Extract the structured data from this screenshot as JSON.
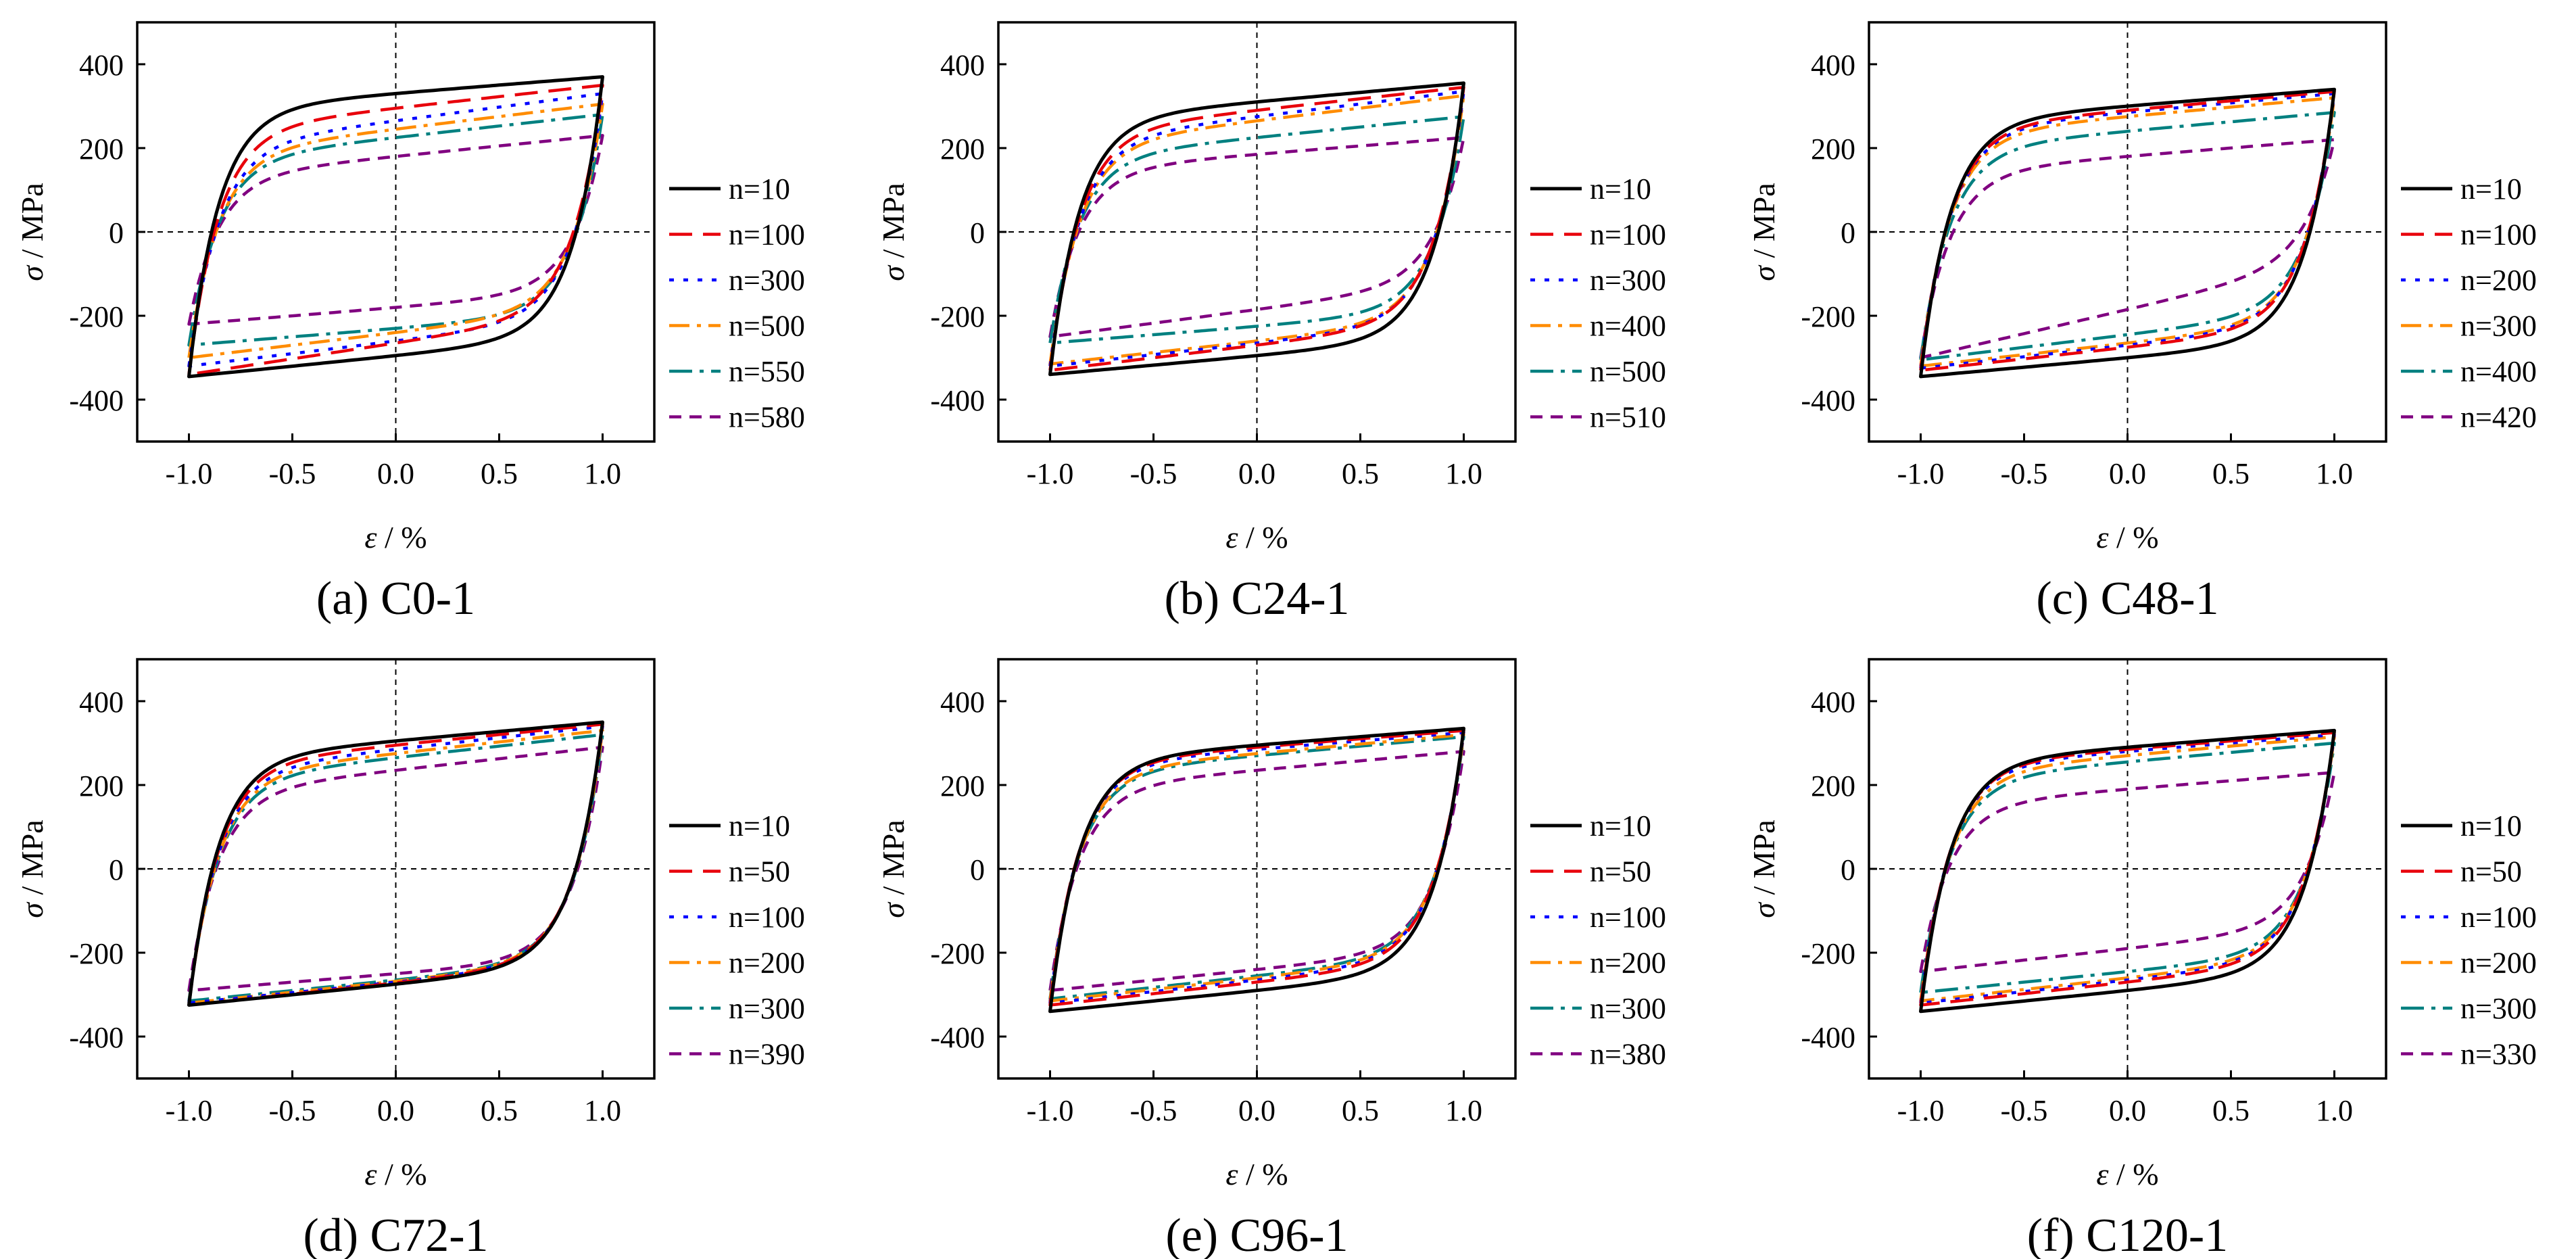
{
  "figure": {
    "axis_labels": {
      "y_symbol": "σ",
      "y_unit": " / MPa",
      "x_symbol": "ε",
      "x_unit": " / %"
    }
  },
  "style": {
    "colors": [
      "#000000",
      "#e8000b",
      "#0000ff",
      "#ff8c00",
      "#008080",
      "#800080"
    ],
    "dashes": [
      "",
      "34 16",
      "7 14",
      "30 11 6 11",
      "34 11 6 11",
      "18 12"
    ]
  },
  "chart_data": [
    {
      "type": "line",
      "title": "(a) C0-1",
      "xlabel": "ε / %",
      "ylabel": "σ / MPa",
      "xlim": [
        -1.25,
        1.25
      ],
      "ylim": [
        -500,
        500
      ],
      "xticks": [
        -1.0,
        -0.5,
        0.0,
        0.5,
        1.0
      ],
      "yticks": [
        -400,
        -200,
        0,
        200,
        400
      ],
      "xtick_labels": [
        "-1.0",
        "-0.5",
        "0.0",
        "0.5",
        "1.0"
      ],
      "ytick_labels": [
        "-400",
        "-200",
        "0",
        "200",
        "400"
      ],
      "series": [
        {
          "name": "n=10",
          "peak_tension": 370,
          "peak_compression": -345,
          "stress_at_zero_strain_upper": 330,
          "stress_at_zero_strain_lower": -295
        },
        {
          "name": "n=100",
          "peak_tension": 350,
          "peak_compression": -340,
          "stress_at_zero_strain_upper": 295,
          "stress_at_zero_strain_lower": -265
        },
        {
          "name": "n=300",
          "peak_tension": 330,
          "peak_compression": -320,
          "stress_at_zero_strain_upper": 265,
          "stress_at_zero_strain_lower": -260
        },
        {
          "name": "n=500",
          "peak_tension": 305,
          "peak_compression": -300,
          "stress_at_zero_strain_upper": 245,
          "stress_at_zero_strain_lower": -240
        },
        {
          "name": "n=550",
          "peak_tension": 280,
          "peak_compression": -270,
          "stress_at_zero_strain_upper": 225,
          "stress_at_zero_strain_lower": -230
        },
        {
          "name": "n=580",
          "peak_tension": 230,
          "peak_compression": -220,
          "stress_at_zero_strain_upper": 180,
          "stress_at_zero_strain_lower": -180
        }
      ]
    },
    {
      "type": "line",
      "title": "(b) C24-1",
      "xlabel": "ε / %",
      "ylabel": "σ / MPa",
      "xlim": [
        -1.25,
        1.25
      ],
      "ylim": [
        -500,
        500
      ],
      "xticks": [
        -1.0,
        -0.5,
        0.0,
        0.5,
        1.0
      ],
      "yticks": [
        -400,
        -200,
        0,
        200,
        400
      ],
      "xtick_labels": [
        "-1.0",
        "-0.5",
        "0.0",
        "0.5",
        "1.0"
      ],
      "ytick_labels": [
        "-400",
        "-200",
        "0",
        "200",
        "400"
      ],
      "series": [
        {
          "name": "n=10",
          "peak_tension": 355,
          "peak_compression": -340,
          "stress_at_zero_strain_upper": 310,
          "stress_at_zero_strain_lower": -295
        },
        {
          "name": "n=100",
          "peak_tension": 345,
          "peak_compression": -330,
          "stress_at_zero_strain_upper": 290,
          "stress_at_zero_strain_lower": -270
        },
        {
          "name": "n=300",
          "peak_tension": 335,
          "peak_compression": -320,
          "stress_at_zero_strain_upper": 275,
          "stress_at_zero_strain_lower": -265
        },
        {
          "name": "n=400",
          "peak_tension": 325,
          "peak_compression": -315,
          "stress_at_zero_strain_upper": 265,
          "stress_at_zero_strain_lower": -260
        },
        {
          "name": "n=500",
          "peak_tension": 275,
          "peak_compression": -265,
          "stress_at_zero_strain_upper": 225,
          "stress_at_zero_strain_lower": -225
        },
        {
          "name": "n=510",
          "peak_tension": 225,
          "peak_compression": -250,
          "stress_at_zero_strain_upper": 185,
          "stress_at_zero_strain_lower": -185
        }
      ]
    },
    {
      "type": "line",
      "title": "(c) C48-1",
      "xlabel": "ε / %",
      "ylabel": "σ / MPa",
      "xlim": [
        -1.25,
        1.25
      ],
      "ylim": [
        -500,
        500
      ],
      "xticks": [
        -1.0,
        -0.5,
        0.0,
        0.5,
        1.0
      ],
      "yticks": [
        -400,
        -200,
        0,
        200,
        400
      ],
      "xtick_labels": [
        "-1.0",
        "-0.5",
        "0.0",
        "0.5",
        "1.0"
      ],
      "ytick_labels": [
        "-400",
        "-200",
        "0",
        "200",
        "400"
      ],
      "series": [
        {
          "name": "n=10",
          "peak_tension": 340,
          "peak_compression": -345,
          "stress_at_zero_strain_upper": 300,
          "stress_at_zero_strain_lower": -300
        },
        {
          "name": "n=100",
          "peak_tension": 335,
          "peak_compression": -330,
          "stress_at_zero_strain_upper": 290,
          "stress_at_zero_strain_lower": -275
        },
        {
          "name": "n=200",
          "peak_tension": 330,
          "peak_compression": -325,
          "stress_at_zero_strain_upper": 285,
          "stress_at_zero_strain_lower": -270
        },
        {
          "name": "n=300",
          "peak_tension": 320,
          "peak_compression": -320,
          "stress_at_zero_strain_upper": 275,
          "stress_at_zero_strain_lower": -265
        },
        {
          "name": "n=400",
          "peak_tension": 285,
          "peak_compression": -305,
          "stress_at_zero_strain_upper": 240,
          "stress_at_zero_strain_lower": -245
        },
        {
          "name": "n=420",
          "peak_tension": 220,
          "peak_compression": -300,
          "stress_at_zero_strain_upper": 180,
          "stress_at_zero_strain_lower": -185
        }
      ]
    },
    {
      "type": "line",
      "title": "(d) C72-1",
      "xlabel": "ε / %",
      "ylabel": "σ / MPa",
      "xlim": [
        -1.25,
        1.25
      ],
      "ylim": [
        -500,
        500
      ],
      "xticks": [
        -1.0,
        -0.5,
        0.0,
        0.5,
        1.0
      ],
      "yticks": [
        -400,
        -200,
        0,
        200,
        400
      ],
      "xtick_labels": [
        "-1.0",
        "-0.5",
        "0.0",
        "0.5",
        "1.0"
      ],
      "ytick_labels": [
        "-400",
        "-200",
        "0",
        "200",
        "400"
      ],
      "series": [
        {
          "name": "n=10",
          "peak_tension": 350,
          "peak_compression": -325,
          "stress_at_zero_strain_upper": 305,
          "stress_at_zero_strain_lower": -275
        },
        {
          "name": "n=50",
          "peak_tension": 345,
          "peak_compression": -325,
          "stress_at_zero_strain_upper": 295,
          "stress_at_zero_strain_lower": -272
        },
        {
          "name": "n=100",
          "peak_tension": 340,
          "peak_compression": -320,
          "stress_at_zero_strain_upper": 285,
          "stress_at_zero_strain_lower": -270
        },
        {
          "name": "n=200",
          "peak_tension": 330,
          "peak_compression": -320,
          "stress_at_zero_strain_upper": 275,
          "stress_at_zero_strain_lower": -268
        },
        {
          "name": "n=300",
          "peak_tension": 320,
          "peak_compression": -315,
          "stress_at_zero_strain_upper": 265,
          "stress_at_zero_strain_lower": -265
        },
        {
          "name": "n=390",
          "peak_tension": 290,
          "peak_compression": -290,
          "stress_at_zero_strain_upper": 235,
          "stress_at_zero_strain_lower": -250
        }
      ]
    },
    {
      "type": "line",
      "title": "(e) C96-1",
      "xlabel": "ε / %",
      "ylabel": "σ / MPa",
      "xlim": [
        -1.25,
        1.25
      ],
      "ylim": [
        -500,
        500
      ],
      "xticks": [
        -1.0,
        -0.5,
        0.0,
        0.5,
        1.0
      ],
      "yticks": [
        -400,
        -200,
        0,
        200,
        400
      ],
      "xtick_labels": [
        "-1.0",
        "-0.5",
        "0.0",
        "0.5",
        "1.0"
      ],
      "ytick_labels": [
        "-400",
        "-200",
        "0",
        "200",
        "400"
      ],
      "series": [
        {
          "name": "n=10",
          "peak_tension": 335,
          "peak_compression": -340,
          "stress_at_zero_strain_upper": 295,
          "stress_at_zero_strain_lower": -290
        },
        {
          "name": "n=50",
          "peak_tension": 330,
          "peak_compression": -325,
          "stress_at_zero_strain_upper": 290,
          "stress_at_zero_strain_lower": -270
        },
        {
          "name": "n=100",
          "peak_tension": 325,
          "peak_compression": -320,
          "stress_at_zero_strain_upper": 285,
          "stress_at_zero_strain_lower": -265
        },
        {
          "name": "n=200",
          "peak_tension": 320,
          "peak_compression": -315,
          "stress_at_zero_strain_upper": 275,
          "stress_at_zero_strain_lower": -260
        },
        {
          "name": "n=300",
          "peak_tension": 315,
          "peak_compression": -310,
          "stress_at_zero_strain_upper": 270,
          "stress_at_zero_strain_lower": -255
        },
        {
          "name": "n=380",
          "peak_tension": 280,
          "peak_compression": -290,
          "stress_at_zero_strain_upper": 235,
          "stress_at_zero_strain_lower": -240
        }
      ]
    },
    {
      "type": "line",
      "title": "(f) C120-1",
      "xlabel": "ε / %",
      "ylabel": "σ / MPa",
      "xlim": [
        -1.25,
        1.25
      ],
      "ylim": [
        -500,
        500
      ],
      "xticks": [
        -1.0,
        -0.5,
        0.0,
        0.5,
        1.0
      ],
      "yticks": [
        -400,
        -200,
        0,
        200,
        400
      ],
      "xtick_labels": [
        "-1.0",
        "-0.5",
        "0.0",
        "0.5",
        "1.0"
      ],
      "ytick_labels": [
        "-400",
        "-200",
        "0",
        "200",
        "400"
      ],
      "series": [
        {
          "name": "n=10",
          "peak_tension": 330,
          "peak_compression": -340,
          "stress_at_zero_strain_upper": 290,
          "stress_at_zero_strain_lower": -290
        },
        {
          "name": "n=50",
          "peak_tension": 325,
          "peak_compression": -325,
          "stress_at_zero_strain_upper": 285,
          "stress_at_zero_strain_lower": -270
        },
        {
          "name": "n=100",
          "peak_tension": 320,
          "peak_compression": -320,
          "stress_at_zero_strain_upper": 280,
          "stress_at_zero_strain_lower": -265
        },
        {
          "name": "n=200",
          "peak_tension": 315,
          "peak_compression": -315,
          "stress_at_zero_strain_upper": 270,
          "stress_at_zero_strain_lower": -260
        },
        {
          "name": "n=300",
          "peak_tension": 300,
          "peak_compression": -295,
          "stress_at_zero_strain_upper": 255,
          "stress_at_zero_strain_lower": -245
        },
        {
          "name": "n=330",
          "peak_tension": 230,
          "peak_compression": -245,
          "stress_at_zero_strain_upper": 190,
          "stress_at_zero_strain_lower": -190
        }
      ]
    }
  ]
}
